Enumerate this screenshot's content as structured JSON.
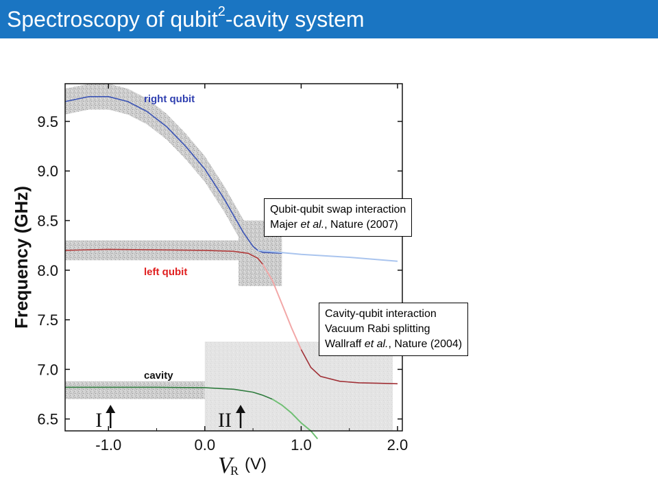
{
  "slide": {
    "title_main": "Spectroscopy of qubit",
    "title_sup": "2",
    "title_end": "-cavity system"
  },
  "annotations": {
    "swap": {
      "line1": "Qubit-qubit swap interaction",
      "line2_author": "Majer ",
      "line2_etal": "et al.",
      "line2_rest": ", Nature (2007)"
    },
    "cavity": {
      "line1": "Cavity-qubit interaction",
      "line2": "Vacuum Rabi splitting",
      "line3_author": "Wallraff ",
      "line3_etal": "et al.",
      "line3_rest": ", Nature (2004)"
    }
  },
  "chart_data": {
    "type": "line",
    "title": "",
    "xlabel_var": "V",
    "xlabel_sub": "R",
    "xlabel_unit": "(V)",
    "ylabel": "Frequency (GHz)",
    "xlim": [
      -1.45,
      2.05
    ],
    "ylim": [
      6.38,
      9.88
    ],
    "xticks": [
      -1.0,
      0.0,
      1.0,
      2.0
    ],
    "xtick_labels": [
      "-1.0",
      "0.0",
      "1.0",
      "2.0"
    ],
    "yticks": [
      6.5,
      7.0,
      7.5,
      8.0,
      8.5,
      9.0,
      9.5
    ],
    "ytick_labels": [
      "6.5",
      "7.0",
      "7.5",
      "8.0",
      "8.5",
      "9.0",
      "9.5"
    ],
    "region_markers": [
      {
        "label": "I",
        "x": -1.0
      },
      {
        "label": "II",
        "x": 0.35
      }
    ],
    "series": [
      {
        "name": "right qubit",
        "color": "#3a53b5",
        "x": [
          -1.45,
          -1.2,
          -1.0,
          -0.8,
          -0.6,
          -0.4,
          -0.2,
          0.0,
          0.2,
          0.4,
          0.5,
          0.55,
          0.6,
          0.7,
          0.8
        ],
        "y": [
          9.7,
          9.75,
          9.75,
          9.7,
          9.6,
          9.45,
          9.25,
          9.02,
          8.72,
          8.38,
          8.24,
          8.2,
          8.18,
          8.175,
          8.17
        ]
      },
      {
        "name": "right qubit (model)",
        "color": "#a9c4ee",
        "x": [
          0.55,
          1.0,
          1.5,
          2.0
        ],
        "y": [
          8.2,
          8.16,
          8.13,
          8.09
        ]
      },
      {
        "name": "left qubit",
        "color": "#b03a3a",
        "x": [
          -1.45,
          -1.0,
          -0.5,
          0.0,
          0.3,
          0.45,
          0.55,
          0.6
        ],
        "y": [
          8.2,
          8.21,
          8.205,
          8.2,
          8.19,
          8.17,
          8.12,
          8.06
        ]
      },
      {
        "name": "left qubit (model)",
        "color": "#f2a7a7",
        "x": [
          0.6,
          0.7,
          0.8,
          0.9,
          1.0
        ],
        "y": [
          8.06,
          7.9,
          7.66,
          7.42,
          7.2
        ]
      },
      {
        "name": "left qubit (dressed)",
        "color": "#a02f35",
        "x": [
          1.0,
          1.1,
          1.2,
          1.4,
          1.6,
          1.8,
          2.0
        ],
        "y": [
          7.2,
          7.02,
          6.93,
          6.88,
          6.865,
          6.86,
          6.855
        ]
      },
      {
        "name": "cavity",
        "color": "#2d7a3c",
        "x": [
          -1.45,
          -1.0,
          -0.5,
          0.0,
          0.3,
          0.5,
          0.6,
          0.7
        ],
        "y": [
          6.82,
          6.82,
          6.82,
          6.815,
          6.8,
          6.77,
          6.74,
          6.7
        ]
      },
      {
        "name": "cavity (model)",
        "color": "#6fbf73",
        "x": [
          0.7,
          0.8,
          0.9,
          1.0,
          1.1,
          1.17
        ],
        "y": [
          6.7,
          6.64,
          6.56,
          6.46,
          6.38,
          6.3
        ]
      }
    ],
    "labels": {
      "right": "right qubit",
      "left": "left qubit",
      "cavity": "cavity"
    }
  },
  "colors": {
    "title_bar": "#1a75c2",
    "right_label": "#3040b0",
    "left_label": "#e02020",
    "cavity_label": "#111111"
  }
}
